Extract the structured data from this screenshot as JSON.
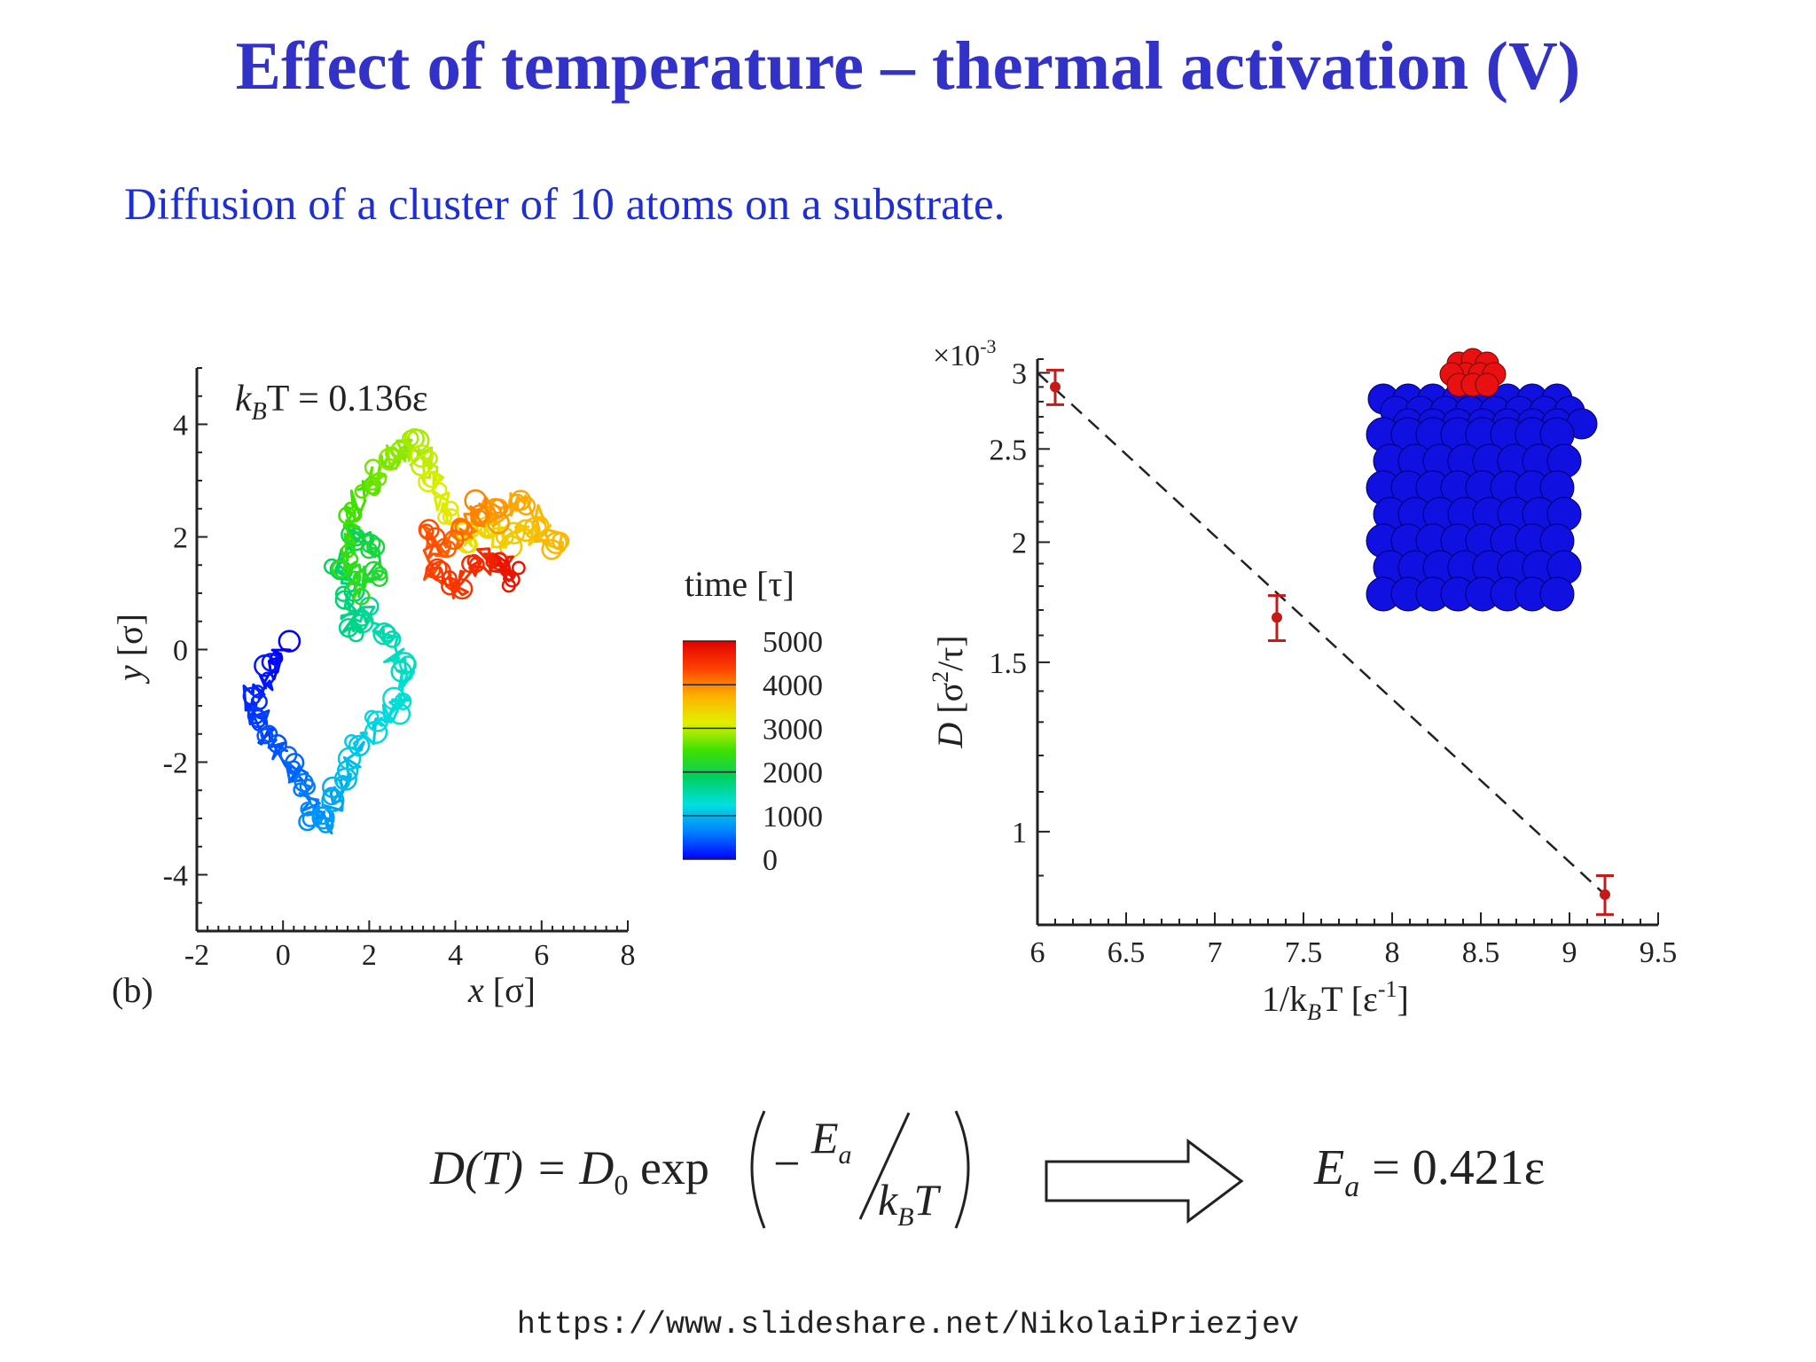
{
  "slide": {
    "title": "Effect of temperature – thermal activation (V)",
    "subtitle": "Diffusion of a cluster of 10 atoms on a substrate.",
    "footer_url": "https://www.slideshare.net/NikolaiPriezjev"
  },
  "chart_data": [
    {
      "type": "line",
      "panel_label": "(b)",
      "annotation": {
        "left": "k",
        "sub": "B",
        "right": "T = 0.136ε"
      },
      "xlabel": {
        "var": "x",
        "unit": "[σ]"
      },
      "ylabel": {
        "var": "y",
        "unit": "[σ]"
      },
      "xlim": [
        -2,
        8
      ],
      "ylim": [
        -5,
        5
      ],
      "xticks": [
        "-2",
        "0",
        "2",
        "4",
        "6",
        "8"
      ],
      "yticks": [
        "-4",
        "-2",
        "0",
        "2",
        "4"
      ],
      "colorbar": {
        "title": "time [τ]",
        "ticks": [
          "5000",
          "4000",
          "3000",
          "2000",
          "1000",
          "0"
        ],
        "range": [
          0,
          5000
        ],
        "colors": [
          "#0000ff",
          "#0080ff",
          "#00e0e0",
          "#00d060",
          "#40e000",
          "#e0f000",
          "#ffb000",
          "#ff4000",
          "#e00000"
        ]
      },
      "series": [
        {
          "x": [
            0,
            -0.3,
            -0.7,
            -0.6,
            -0.3,
            0.1,
            0.5,
            0.7,
            1.0,
            1.3,
            1.5,
            1.7,
            2.2,
            2.7,
            2.9,
            2.4,
            2.0,
            1.6,
            1.5,
            1.3,
            1.6,
            2.0,
            2.1,
            1.8,
            1.5,
            1.6,
            2.0,
            2.2,
            2.6,
            3.0,
            3.3,
            3.5,
            3.9,
            4.3,
            4.7,
            5.2,
            5.8,
            6.4,
            5.6,
            5.0,
            4.6,
            4.2,
            3.8,
            3.4,
            3.5,
            4.0,
            4.4,
            4.9,
            5.3,
            5.1
          ],
          "y": [
            0,
            -0.4,
            -0.8,
            -1.2,
            -1.6,
            -2.0,
            -2.4,
            -2.9,
            -3.1,
            -2.6,
            -2.2,
            -1.8,
            -1.3,
            -1.0,
            -0.4,
            0.2,
            0.6,
            0.4,
            1.0,
            1.5,
            2.0,
            1.8,
            1.4,
            1.1,
            1.6,
            2.4,
            2.9,
            3.1,
            3.4,
            3.6,
            3.3,
            2.9,
            2.4,
            2.0,
            2.2,
            1.9,
            2.1,
            1.8,
            2.6,
            2.4,
            2.5,
            2.1,
            1.8,
            2.0,
            1.3,
            1.1,
            1.4,
            1.7,
            1.3,
            1.5
          ],
          "t": [
            0,
            100,
            200,
            300,
            400,
            500,
            600,
            700,
            800,
            900,
            1000,
            1100,
            1200,
            1300,
            1400,
            1500,
            1600,
            1700,
            1800,
            1900,
            2000,
            2100,
            2200,
            2300,
            2400,
            2500,
            2600,
            2700,
            2800,
            2900,
            3000,
            3100,
            3200,
            3300,
            3400,
            3500,
            3600,
            3700,
            3800,
            3900,
            4000,
            4100,
            4200,
            4300,
            4400,
            4500,
            4600,
            4700,
            4800,
            4900
          ]
        }
      ]
    },
    {
      "type": "scatter",
      "scale_label": {
        "base": "×10",
        "exp": "-3"
      },
      "xlabel": {
        "prefix": "1/k",
        "sub": "B",
        "mid": "T [ε",
        "sup": "-1",
        "suffix": "]"
      },
      "ylabel": {
        "var": "D",
        "unit_pre": "[σ",
        "sup": "2",
        "unit_post": "/τ]"
      },
      "xlim": [
        6,
        9.5
      ],
      "ylim": [
        0.8,
        3.1
      ],
      "yscale": "log",
      "xticks": [
        "6",
        "6.5",
        "7",
        "7.5",
        "8",
        "8.5",
        "9",
        "9.5"
      ],
      "yticks": [
        {
          "value": 1,
          "label": "1"
        },
        {
          "value": 1.5,
          "label": "1.5"
        },
        {
          "value": 2,
          "label": "2"
        },
        {
          "value": 2.5,
          "label": "2.5"
        },
        {
          "value": 3,
          "label": "3"
        }
      ],
      "points": [
        {
          "x": 6.1,
          "y": 2.9,
          "err": 0.12
        },
        {
          "x": 7.35,
          "y": 1.67,
          "err": 0.09
        },
        {
          "x": 9.2,
          "y": 0.86,
          "err": 0.04
        }
      ],
      "fit_line": {
        "x": [
          6.0,
          9.2
        ],
        "y": [
          3.0,
          0.86
        ]
      },
      "marker_color": "#c41a1a",
      "inset": {
        "substrate_color": "#1010e0",
        "cluster_color": "#e81010"
      }
    }
  ],
  "equation": {
    "lhs": "D(T) = D",
    "sub0": "0",
    "exp": " exp",
    "minus": "−",
    "num": "E",
    "num_sub": "a",
    "den": "k",
    "den_sub": "B",
    "den_tail": "T",
    "result": "E",
    "result_sub": "a",
    "result_value": " = 0.421ε"
  }
}
